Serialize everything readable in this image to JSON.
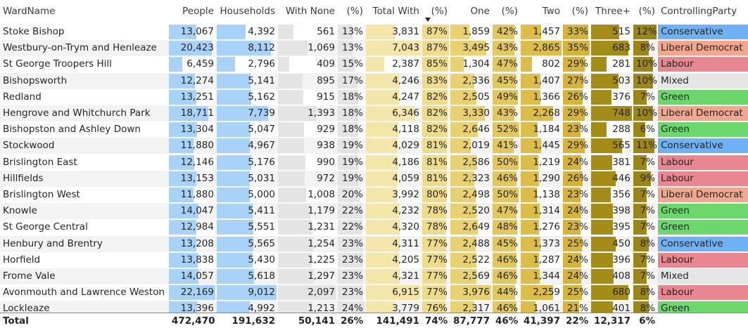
{
  "header": {
    "columns": [
      "WardName",
      "People",
      "Households",
      "With None",
      "(%)",
      "Total With",
      "(%)",
      "One",
      "(%)",
      "Two",
      "(%)",
      "Three+",
      "(%)",
      "ControllingParty"
    ]
  },
  "table": {
    "rows": [
      [
        "Stoke Bishop",
        "13,067",
        "4,392",
        "561",
        "13%",
        "3,831",
        "87%",
        "1,859",
        "42%",
        "1,457",
        "33%",
        "515",
        "12%",
        "Conservative"
      ],
      [
        "Westbury-on-Trym and Henleaze",
        "20,423",
        "8,112",
        "1,069",
        "13%",
        "7,043",
        "87%",
        "3,495",
        "43%",
        "2,865",
        "35%",
        "683",
        "8%",
        "Liberal Democrat"
      ],
      [
        "St George Troopers Hill",
        "6,459",
        "2,796",
        "409",
        "15%",
        "2,387",
        "85%",
        "1,304",
        "47%",
        "802",
        "29%",
        "281",
        "10%",
        "Labour"
      ],
      [
        "Bishopsworth",
        "12,274",
        "5,141",
        "895",
        "17%",
        "4,246",
        "83%",
        "2,336",
        "45%",
        "1,407",
        "27%",
        "503",
        "10%",
        "Mixed"
      ],
      [
        "Redland",
        "13,251",
        "5,162",
        "915",
        "18%",
        "4,247",
        "82%",
        "2,505",
        "49%",
        "1,366",
        "26%",
        "376",
        "7%",
        "Green"
      ],
      [
        "Hengrove and Whitchurch Park",
        "18,711",
        "7,739",
        "1,393",
        "18%",
        "6,346",
        "82%",
        "3,330",
        "43%",
        "2,268",
        "29%",
        "748",
        "10%",
        "Liberal Democrat"
      ],
      [
        "Bishopston and Ashley Down",
        "13,304",
        "5,047",
        "929",
        "18%",
        "4,118",
        "82%",
        "2,646",
        "52%",
        "1,184",
        "23%",
        "288",
        "6%",
        "Green"
      ],
      [
        "Stockwood",
        "11,880",
        "4,967",
        "938",
        "19%",
        "4,029",
        "81%",
        "2,019",
        "41%",
        "1,445",
        "29%",
        "565",
        "11%",
        "Conservative"
      ],
      [
        "Brislington East",
        "12,146",
        "5,176",
        "990",
        "19%",
        "4,186",
        "81%",
        "2,586",
        "50%",
        "1,219",
        "24%",
        "381",
        "7%",
        "Labour"
      ],
      [
        "Hillfields",
        "13,153",
        "5,031",
        "972",
        "19%",
        "4,059",
        "81%",
        "2,323",
        "46%",
        "1,290",
        "26%",
        "446",
        "9%",
        "Labour"
      ],
      [
        "Brislington West",
        "11,880",
        "5,000",
        "1,008",
        "20%",
        "3,992",
        "80%",
        "2,498",
        "50%",
        "1,138",
        "23%",
        "356",
        "7%",
        "Liberal Democrat"
      ],
      [
        "Knowle",
        "14,047",
        "5,411",
        "1,179",
        "22%",
        "4,232",
        "78%",
        "2,520",
        "47%",
        "1,314",
        "24%",
        "398",
        "7%",
        "Green"
      ],
      [
        "St George Central",
        "12,984",
        "5,551",
        "1,231",
        "22%",
        "4,320",
        "78%",
        "2,649",
        "48%",
        "1,276",
        "23%",
        "395",
        "7%",
        "Green"
      ],
      [
        "Henbury and Brentry",
        "13,208",
        "5,565",
        "1,254",
        "23%",
        "4,311",
        "77%",
        "2,488",
        "45%",
        "1,373",
        "25%",
        "450",
        "8%",
        "Conservative"
      ],
      [
        "Horfield",
        "13,838",
        "5,430",
        "1,225",
        "23%",
        "4,205",
        "77%",
        "2,522",
        "46%",
        "1,287",
        "24%",
        "396",
        "7%",
        "Labour"
      ],
      [
        "Frome Vale",
        "14,057",
        "5,618",
        "1,297",
        "23%",
        "4,321",
        "77%",
        "2,569",
        "46%",
        "1,344",
        "24%",
        "408",
        "7%",
        "Mixed"
      ],
      [
        "Avonmouth and Lawrence Weston",
        "22,169",
        "9,012",
        "2,097",
        "23%",
        "6,915",
        "77%",
        "3,976",
        "44%",
        "2,259",
        "25%",
        "680",
        "8%",
        "Labour"
      ],
      [
        "Lockleaze",
        "13,396",
        "4,992",
        "1,213",
        "24%",
        "3,779",
        "76%",
        "2,317",
        "46%",
        "1,061",
        "21%",
        "401",
        "8%",
        "Green"
      ]
    ]
  },
  "total": {
    "cells": [
      "Total",
      "472,470",
      "191,632",
      "50,141",
      "26%",
      "141,491",
      "74%",
      "87,777",
      "46%",
      "41,397",
      "22%",
      "12,317",
      "6%"
    ]
  },
  "bar_colors": [
    "#a9d2f8",
    "#a9d2f8",
    "#e4e4e4",
    "#e4e4e4",
    "#f3e6a8",
    "#eedc8a",
    "#e9d170",
    "#e2c75e",
    "#dcbd48",
    "#d6b43a",
    "#a38d16",
    "#9c8716"
  ],
  "party_colors": {
    "Conservative": "#6cb2f5",
    "Liberal Democrat": "#f2a68b",
    "Labour": "#e8878f",
    "Mixed": "#e6e6e6",
    "Green": "#6cd76c"
  }
}
